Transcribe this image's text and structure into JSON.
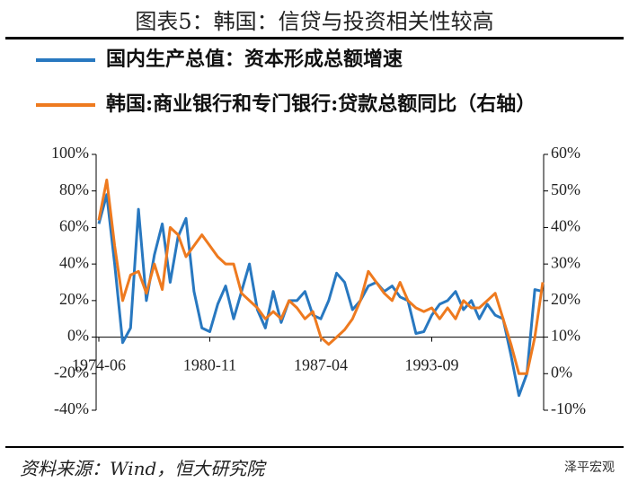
{
  "title": "图表5：韩国：信贷与投资相关性较高",
  "source": "资料来源：Wind，恒大研究院",
  "watermark": "泽平宏观",
  "chart_data": {
    "type": "line",
    "categories": [
      "1974-06",
      null,
      null,
      null,
      null,
      null,
      null,
      null,
      null,
      null,
      null,
      null,
      null,
      null,
      "1980-11",
      null,
      null,
      null,
      null,
      null,
      null,
      null,
      null,
      null,
      null,
      null,
      null,
      null,
      "1987-04",
      null,
      null,
      null,
      null,
      null,
      null,
      null,
      null,
      null,
      null,
      null,
      null,
      null,
      "1993-09",
      null,
      null,
      null,
      null,
      null,
      null,
      null,
      null,
      null,
      null,
      null,
      null,
      null,
      null
    ],
    "series": [
      {
        "name": "国内生产总值：资本形成总额增速",
        "color": "#2878c0",
        "values": [
          62,
          78,
          40,
          -3,
          5,
          70,
          20,
          45,
          62,
          30,
          55,
          65,
          25,
          5,
          3,
          18,
          28,
          10,
          25,
          40,
          15,
          5,
          25,
          8,
          20,
          20,
          25,
          12,
          10,
          20,
          35,
          30,
          15,
          20,
          28,
          30,
          25,
          28,
          22,
          20,
          2,
          3,
          12,
          18,
          20,
          25,
          15,
          20,
          10,
          18,
          12,
          10,
          -10,
          -32,
          -20,
          26,
          25
        ]
      },
      {
        "name": "韩国:商业银行和专门银行:贷款总额同比（右轴）",
        "color": "#ee7a1f",
        "axis": "y2",
        "values": [
          42,
          53,
          35,
          20,
          27,
          28,
          22,
          30,
          23,
          40,
          38,
          32,
          35,
          38,
          35,
          32,
          30,
          30,
          22,
          20,
          18,
          15,
          17,
          15,
          20,
          18,
          15,
          17,
          10,
          8,
          10,
          12,
          15,
          20,
          28,
          25,
          22,
          20,
          25,
          20,
          18,
          17,
          18,
          15,
          18,
          15,
          20,
          18,
          18,
          20,
          22,
          15,
          8,
          0,
          0,
          10,
          25
        ]
      }
    ],
    "ylim": [
      -40,
      100
    ],
    "yticks": [
      {
        "value": -40,
        "label": "-40%"
      },
      {
        "value": -20,
        "label": "-20%"
      },
      {
        "value": 0,
        "label": "0%"
      },
      {
        "value": 20,
        "label": "20%"
      },
      {
        "value": 40,
        "label": "40%"
      },
      {
        "value": 60,
        "label": "60%"
      },
      {
        "value": 80,
        "label": "80%"
      },
      {
        "value": 100,
        "label": "100%"
      }
    ],
    "y2lim": [
      -10,
      60
    ],
    "y2ticks": [
      {
        "value": -10,
        "label": "-10%"
      },
      {
        "value": 0,
        "label": "0%"
      },
      {
        "value": 10,
        "label": "10%"
      },
      {
        "value": 20,
        "label": "20%"
      },
      {
        "value": 30,
        "label": "30%"
      },
      {
        "value": 40,
        "label": "40%"
      },
      {
        "value": 50,
        "label": "50%"
      },
      {
        "value": 60,
        "label": "60%"
      }
    ],
    "grid": false
  }
}
